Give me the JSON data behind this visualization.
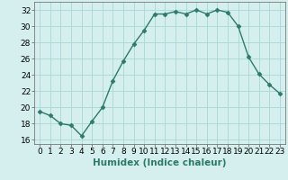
{
  "x": [
    0,
    1,
    2,
    3,
    4,
    5,
    6,
    7,
    8,
    9,
    10,
    11,
    12,
    13,
    14,
    15,
    16,
    17,
    18,
    19,
    20,
    21,
    22,
    23
  ],
  "y": [
    19.5,
    19.0,
    18.0,
    17.8,
    16.5,
    18.3,
    20.0,
    23.3,
    25.7,
    27.8,
    29.5,
    31.5,
    31.5,
    31.8,
    31.5,
    32.0,
    31.5,
    32.0,
    31.7,
    30.0,
    26.2,
    24.1,
    22.8,
    21.7
  ],
  "line_color": "#2d7a6a",
  "marker": "D",
  "marker_size": 2.5,
  "bg_color": "#d5efef",
  "grid_color": "#aedada",
  "xlabel": "Humidex (Indice chaleur)",
  "xlim": [
    -0.5,
    23.5
  ],
  "ylim": [
    15.5,
    33.0
  ],
  "yticks": [
    16,
    18,
    20,
    22,
    24,
    26,
    28,
    30,
    32
  ],
  "xticks": [
    0,
    1,
    2,
    3,
    4,
    5,
    6,
    7,
    8,
    9,
    10,
    11,
    12,
    13,
    14,
    15,
    16,
    17,
    18,
    19,
    20,
    21,
    22,
    23
  ],
  "tick_fontsize": 6.5,
  "xlabel_fontsize": 7.5
}
